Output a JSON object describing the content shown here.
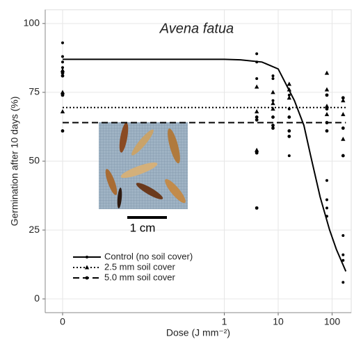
{
  "chart_data": {
    "type": "scatter",
    "title": "Avena fatua",
    "x_label": "Dose (J mm⁻²)",
    "y_label": "Germination after 10 days (%)",
    "x_scale": "pseudo_log",
    "xlim": [
      0,
      200
    ],
    "xticks": [
      0,
      1,
      10,
      100
    ],
    "ylim": [
      -5,
      105
    ],
    "yticks": [
      0,
      25,
      50,
      75,
      100
    ],
    "grid": true,
    "legend": "bottom-left",
    "annotations": [
      {
        "text": "1 cm"
      }
    ],
    "series": [
      {
        "name": "Control (no soil cover)",
        "color": "#000000",
        "marker": "dot",
        "line_style": "solid",
        "x": [
          0,
          0,
          0,
          0,
          4,
          4,
          4,
          8,
          8,
          8,
          16,
          16,
          16,
          80,
          80,
          80,
          80,
          160,
          160,
          160,
          160
        ],
        "y": [
          93,
          88,
          86,
          84,
          89,
          86,
          80,
          81,
          80,
          72,
          74,
          69,
          52,
          43,
          36,
          33,
          30,
          23,
          16,
          14,
          6
        ],
        "fit": {
          "x": [
            0,
            0.5,
            1,
            2,
            5,
            10,
            20,
            30,
            40,
            60,
            90,
            120,
            180
          ],
          "y": [
            87,
            87,
            87,
            86.8,
            86,
            83.5,
            72,
            63,
            52,
            37,
            25,
            18,
            10
          ]
        }
      },
      {
        "name": "2.5 mm soil cover",
        "color": "#000000",
        "marker": "triangle",
        "line_style": "dotted",
        "x": [
          0,
          0,
          0,
          4,
          4,
          4,
          8,
          8,
          8,
          16,
          16,
          16,
          80,
          80,
          80,
          80,
          160,
          160,
          160
        ],
        "y": [
          83,
          75,
          68,
          77,
          68,
          54,
          75,
          71,
          69,
          78,
          76,
          73,
          82,
          76,
          70,
          67,
          72,
          67,
          58
        ],
        "fit": {
          "x": [
            0,
            180
          ],
          "y": [
            69.5,
            69.5
          ]
        }
      },
      {
        "name": "5.0 mm soil cover",
        "color": "#000000",
        "marker": "circle",
        "line_style": "dashed",
        "x": [
          0,
          0,
          0,
          0,
          4,
          4,
          4,
          4,
          8,
          8,
          8,
          16,
          16,
          16,
          80,
          80,
          80,
          80,
          160,
          160,
          160
        ],
        "y": [
          82,
          81,
          74,
          61,
          66,
          65,
          53,
          33,
          66,
          63,
          62,
          66,
          61,
          59,
          74,
          69,
          64,
          61,
          73,
          62,
          52
        ],
        "fit": {
          "x": [
            0,
            180
          ],
          "y": [
            64,
            64
          ]
        }
      }
    ]
  }
}
